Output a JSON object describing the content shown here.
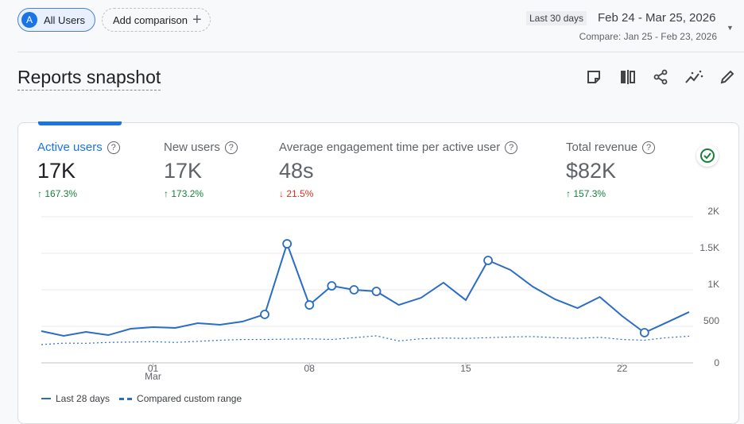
{
  "header": {
    "segment": {
      "avatar": "A",
      "label": "All Users"
    },
    "add_comparison": "Add comparison",
    "date_preset": "Last 30 days",
    "date_range": "Feb 24 - Mar 25, 2026",
    "compare_range": "Compare: Jan 25 - Feb 23, 2026"
  },
  "page_title": "Reports snapshot",
  "toolbar": [
    "note-icon",
    "compare-columns-icon",
    "share-icon",
    "insights-icon",
    "edit-icon"
  ],
  "metrics": [
    {
      "label": "Active users",
      "value": "17K",
      "change": "167.3%",
      "direction": "up",
      "active": true
    },
    {
      "label": "New users",
      "value": "17K",
      "change": "173.2%",
      "direction": "up"
    },
    {
      "label": "Average engagement time per active user",
      "value": "48s",
      "change": "21.5%",
      "direction": "down"
    },
    {
      "label": "Total revenue",
      "value": "$82K",
      "change": "157.3%",
      "direction": "up"
    }
  ],
  "colors": {
    "accent": "#1a73e8",
    "line": "#2b6cc4",
    "up": "#188038",
    "down": "#d93025"
  },
  "chart_data": {
    "type": "line",
    "x_start": "Feb 24",
    "x_end": "Mar 25",
    "x_tick_labels": [
      {
        "index": 5,
        "label": "01",
        "sub": "Mar"
      },
      {
        "index": 12,
        "label": "08"
      },
      {
        "index": 19,
        "label": "15"
      },
      {
        "index": 26,
        "label": "22"
      }
    ],
    "y_tick_labels": [
      "0",
      "500",
      "1K",
      "1.5K",
      "2K"
    ],
    "ylim": [
      0,
      2000
    ],
    "grid": true,
    "legend_position": "bottom-left",
    "series": [
      {
        "name": "Last 28 days",
        "style": "solid",
        "values": [
          435,
          370,
          424,
          380,
          467,
          489,
          478,
          543,
          522,
          565,
          663,
          1630,
          793,
          1054,
          1000,
          978,
          793,
          891,
          1098,
          859,
          1402,
          1272,
          1043,
          870,
          750,
          902,
          641,
          413,
          554,
          696
        ],
        "markers": [
          10,
          11,
          12,
          13,
          14,
          15,
          20,
          27
        ]
      },
      {
        "name": "Compared custom range",
        "style": "dotted",
        "values": [
          250,
          270,
          268,
          280,
          285,
          290,
          280,
          295,
          310,
          320,
          320,
          325,
          330,
          320,
          345,
          370,
          300,
          330,
          340,
          335,
          345,
          355,
          360,
          345,
          335,
          350,
          320,
          310,
          345,
          365
        ]
      }
    ]
  }
}
